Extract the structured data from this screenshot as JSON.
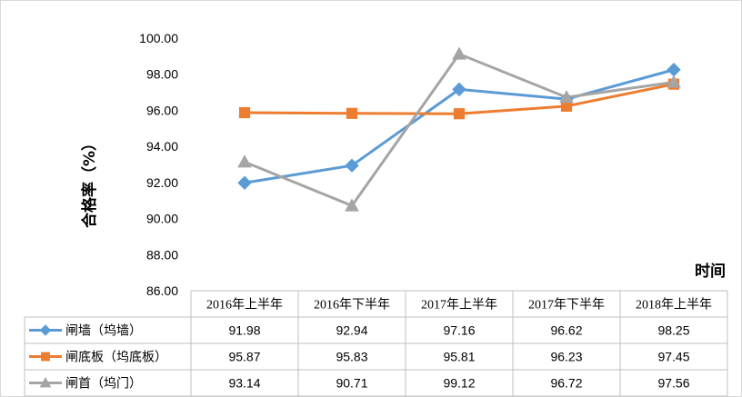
{
  "chart_data": {
    "type": "line",
    "ylabel": "合格率（%）",
    "xlabel": "时间",
    "ylim": [
      86,
      100
    ],
    "ytick_step": 2,
    "ytick_labels": [
      "86.00",
      "88.00",
      "90.00",
      "92.00",
      "94.00",
      "96.00",
      "98.00",
      "100.00"
    ],
    "categories": [
      "2016年上半年",
      "2016年下半年",
      "2017年上半年",
      "2017年下半年",
      "2018年上半年"
    ],
    "grid": false,
    "legend": "data-table",
    "series": [
      {
        "name": "闸墙（坞墙）",
        "marker": "diamond",
        "color": "#5B9BD5",
        "values": [
          91.98,
          92.94,
          97.16,
          96.62,
          98.25
        ],
        "labels": [
          "91.98",
          "92.94",
          "97.16",
          "96.62",
          "98.25"
        ]
      },
      {
        "name": "闸底板（坞底板）",
        "marker": "square",
        "color": "#ED7D31",
        "values": [
          95.87,
          95.83,
          95.81,
          96.23,
          97.45
        ],
        "labels": [
          "95.87",
          "95.83",
          "95.81",
          "96.23",
          "97.45"
        ]
      },
      {
        "name": "闸首（坞门）",
        "marker": "triangle",
        "color": "#A5A5A5",
        "values": [
          93.14,
          90.71,
          99.12,
          96.72,
          97.56
        ],
        "labels": [
          "93.14",
          "90.71",
          "99.12",
          "96.72",
          "97.56"
        ]
      }
    ]
  }
}
